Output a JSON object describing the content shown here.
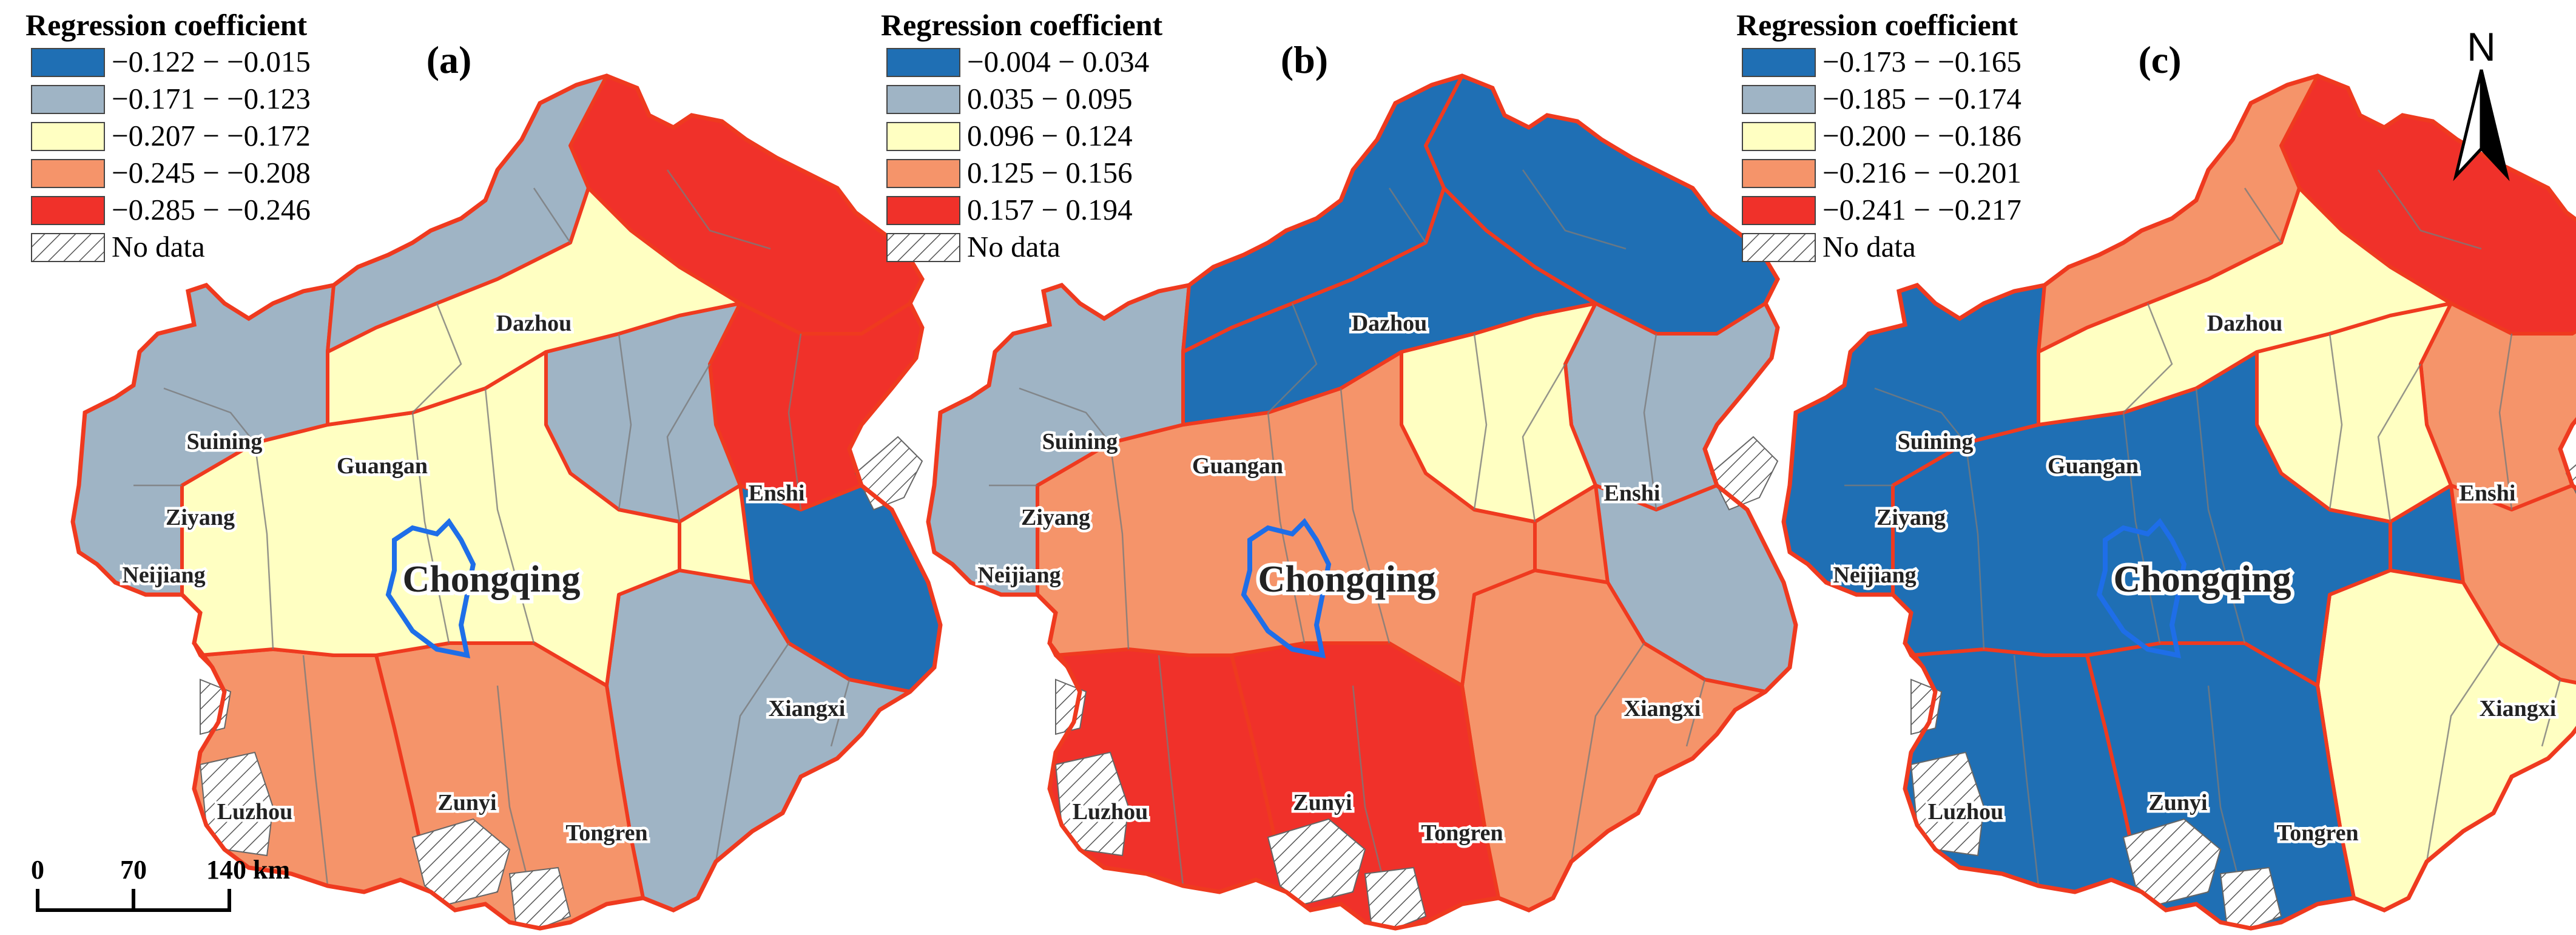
{
  "figure": {
    "colors": {
      "blue": "#1f6fb4",
      "gray": "#9fb4c5",
      "yellow": "#ffffc2",
      "orange": "#f5946a",
      "red": "#f0312a",
      "boundary": "#ef3a1f",
      "chongqing_core": "#1e6ee8"
    },
    "panels": [
      {
        "letter": "(a)",
        "legend_title": "Regression coefficient",
        "classes": [
          "−0.122 − −0.015",
          "−0.171 − −0.123",
          "−0.207 − −0.172",
          "−0.245 − −0.208",
          "−0.285 − −0.246"
        ],
        "no_data": "No data"
      },
      {
        "letter": "(b)",
        "legend_title": "Regression coefficient",
        "classes": [
          "−0.004 − 0.034",
          "0.035 − 0.095",
          "0.096 − 0.124",
          "0.125 − 0.156",
          "0.157 − 0.194"
        ],
        "no_data": "No data"
      },
      {
        "letter": "(c)",
        "legend_title": "Regression coefficient",
        "classes": [
          "−0.173 − −0.165",
          "−0.185 − −0.174",
          "−0.200 − −0.186",
          "−0.216 − −0.201",
          "−0.241 − −0.217"
        ],
        "no_data": "No data"
      }
    ],
    "cities": [
      "Dazhou",
      "Suining",
      "Guangan",
      "Ziyang",
      "Neijiang",
      "Chongqing",
      "Enshi",
      "Xiangxi",
      "Luzhou",
      "Zunyi",
      "Tongren"
    ],
    "scale_bar": {
      "ticks": [
        "0",
        "70",
        "140 km"
      ]
    },
    "north_label": "N"
  }
}
